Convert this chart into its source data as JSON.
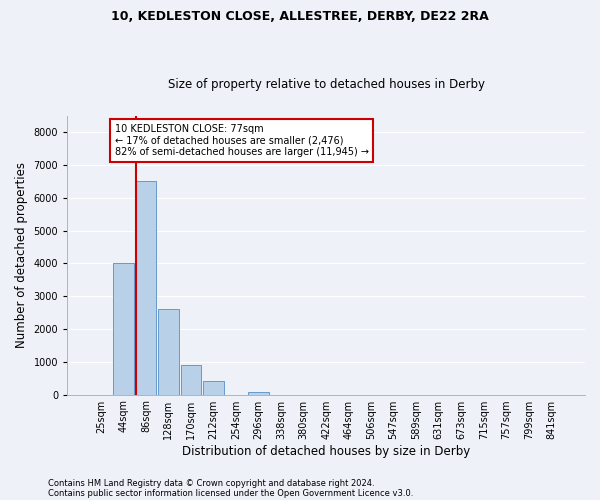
{
  "title_line1": "10, KEDLESTON CLOSE, ALLESTREE, DERBY, DE22 2RA",
  "title_line2": "Size of property relative to detached houses in Derby",
  "xlabel": "Distribution of detached houses by size in Derby",
  "ylabel": "Number of detached properties",
  "footnote1": "Contains HM Land Registry data © Crown copyright and database right 2024.",
  "footnote2": "Contains public sector information licensed under the Open Government Licence v3.0.",
  "categories": [
    "25sqm",
    "44sqm",
    "86sqm",
    "128sqm",
    "170sqm",
    "212sqm",
    "254sqm",
    "296sqm",
    "338sqm",
    "380sqm",
    "422sqm",
    "464sqm",
    "506sqm",
    "547sqm",
    "589sqm",
    "631sqm",
    "673sqm",
    "715sqm",
    "757sqm",
    "799sqm",
    "841sqm"
  ],
  "values": [
    0,
    4000,
    6500,
    2600,
    900,
    420,
    0,
    90,
    0,
    0,
    0,
    0,
    0,
    0,
    0,
    0,
    0,
    0,
    0,
    0,
    0
  ],
  "bar_color": "#b8d0e8",
  "bar_edge_color": "#6699cc",
  "ylim": [
    0,
    8500
  ],
  "yticks": [
    0,
    1000,
    2000,
    3000,
    4000,
    5000,
    6000,
    7000,
    8000
  ],
  "property_line_index": 2,
  "annotation_text": "10 KEDLESTON CLOSE: 77sqm\n← 17% of detached houses are smaller (2,476)\n82% of semi-detached houses are larger (11,945) →",
  "annotation_box_color": "#ffffff",
  "annotation_box_edge_color": "#cc0000",
  "vline_color": "#cc0000",
  "background_color": "#eef2f8",
  "grid_color": "#ffffff",
  "title1_fontsize": 9,
  "title2_fontsize": 8.5,
  "xlabel_fontsize": 8.5,
  "ylabel_fontsize": 8.5,
  "tick_fontsize": 7,
  "annotation_fontsize": 7,
  "footnote_fontsize": 6
}
